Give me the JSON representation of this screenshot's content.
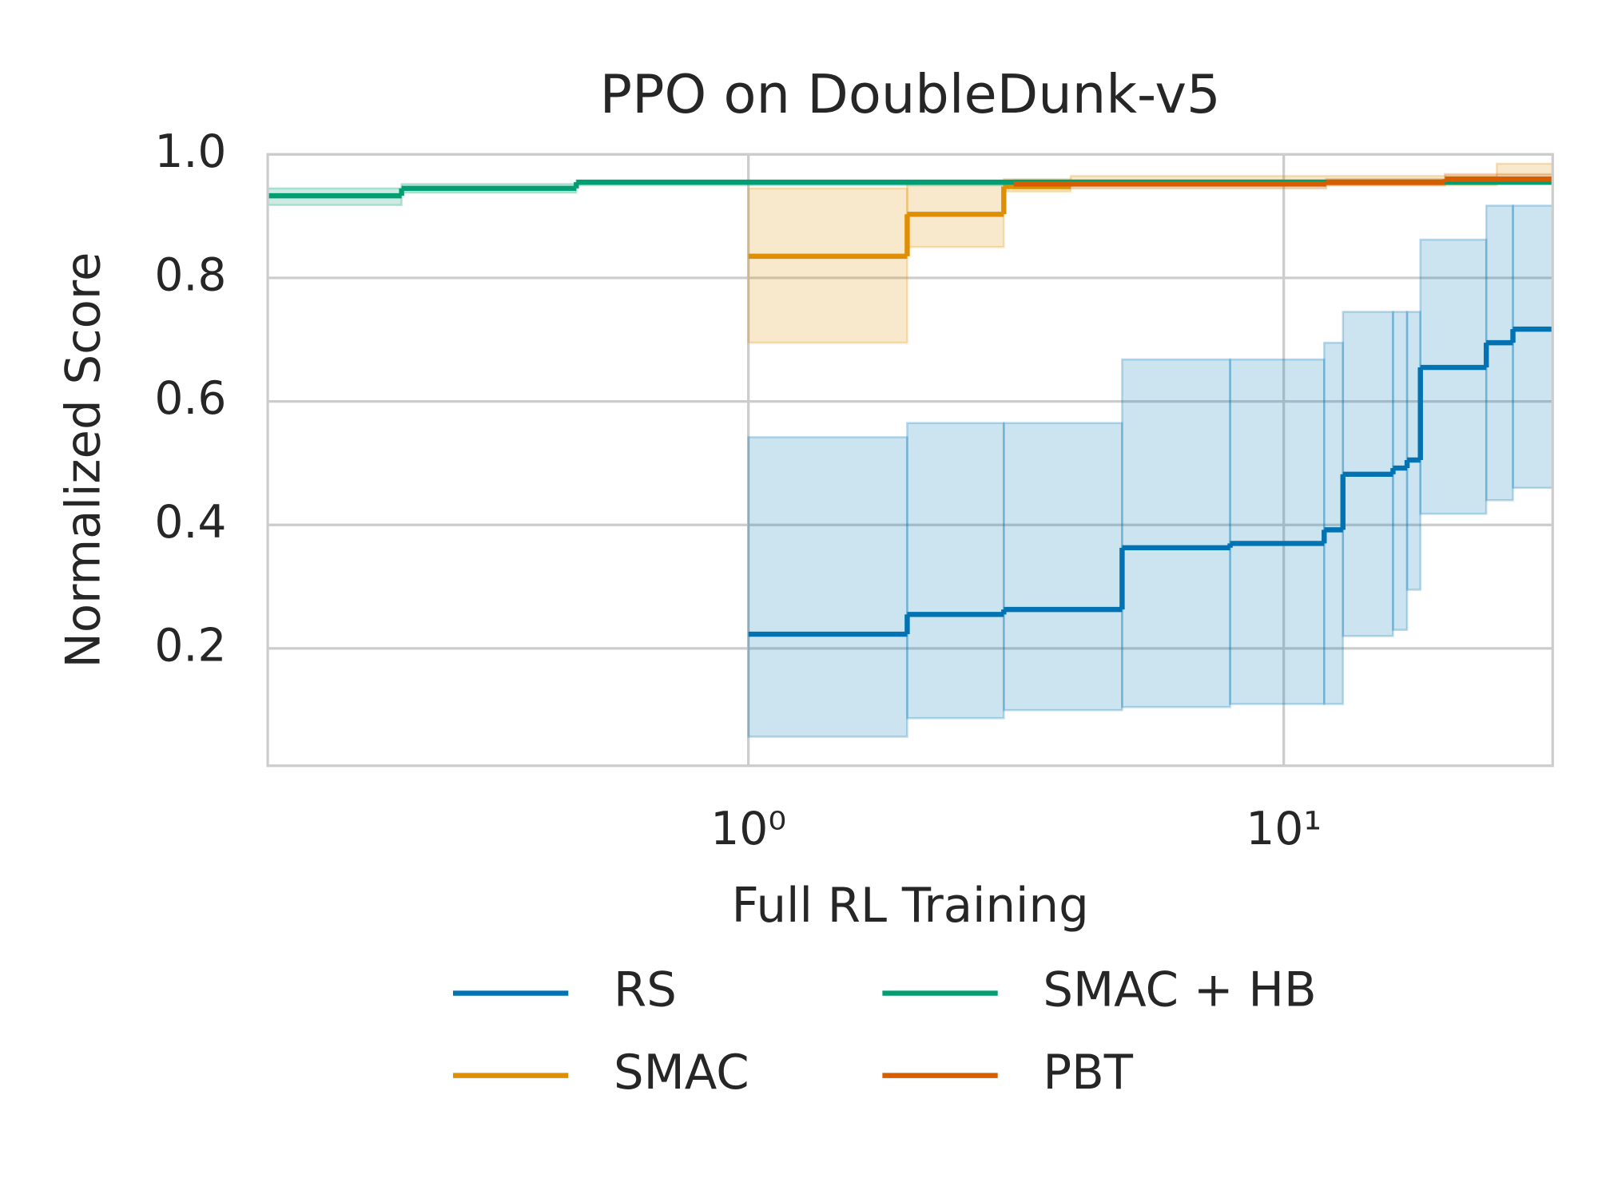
{
  "chart_data": {
    "type": "line",
    "drawstyle": "steps-post",
    "title": "PPO on DoubleDunk-v5",
    "xlabel": "Full RL Training",
    "ylabel": "Normalized Score",
    "xscale": "log",
    "xlim": [
      0.1265,
      31.8
    ],
    "ylim": [
      0.01,
      1.0
    ],
    "xticks": [
      {
        "value": 1,
        "label": "10⁰"
      },
      {
        "value": 10,
        "label": "10¹"
      }
    ],
    "yticks": [
      0.2,
      0.4,
      0.6,
      0.8,
      {
        "value": 1.0,
        "label": "1.0"
      }
    ],
    "grid": true,
    "legend": "bottom",
    "series": [
      {
        "name": "RS",
        "color": "#0173b2",
        "x": [
          1,
          1.98,
          3.0,
          4.99,
          7.94,
          11.9,
          12.9,
          16.0,
          17.0,
          18.0,
          23.9,
          26.8
        ],
        "values": [
          0.223,
          0.255,
          0.263,
          0.363,
          0.37,
          0.392,
          0.482,
          0.492,
          0.505,
          0.655,
          0.695,
          0.717
        ],
        "upper": [
          0.542,
          0.565,
          0.565,
          0.668,
          0.668,
          0.695,
          0.745,
          0.745,
          0.745,
          0.862,
          0.917,
          0.917
        ],
        "lower": [
          0.057,
          0.087,
          0.1,
          0.105,
          0.11,
          0.11,
          0.22,
          0.23,
          0.295,
          0.418,
          0.44,
          0.46
        ]
      },
      {
        "name": "SMAC",
        "color": "#de8f05",
        "x": [
          1,
          1.98,
          3.0,
          4.0,
          25.0
        ],
        "values": [
          0.835,
          0.903,
          0.948,
          0.955,
          0.96
        ],
        "upper": [
          0.945,
          0.955,
          0.96,
          0.965,
          0.985
        ],
        "lower": [
          0.695,
          0.85,
          0.94,
          0.95,
          0.955
        ]
      },
      {
        "name": "SMAC + HB",
        "color": "#029e73",
        "x": [
          0.1265,
          0.225,
          0.477,
          3.13
        ],
        "values": [
          0.933,
          0.945,
          0.955,
          0.955
        ],
        "upper": [
          0.945,
          0.952,
          0.957,
          0.958
        ],
        "lower": [
          0.918,
          0.938,
          0.95,
          0.952
        ]
      },
      {
        "name": "PBT",
        "color": "#d55e00",
        "x": [
          3.13,
          12.0,
          20.0
        ],
        "values": [
          0.952,
          0.955,
          0.96
        ],
        "upper": [
          0.957,
          0.96,
          0.968
        ],
        "lower": [
          0.945,
          0.95,
          0.955
        ]
      }
    ]
  }
}
